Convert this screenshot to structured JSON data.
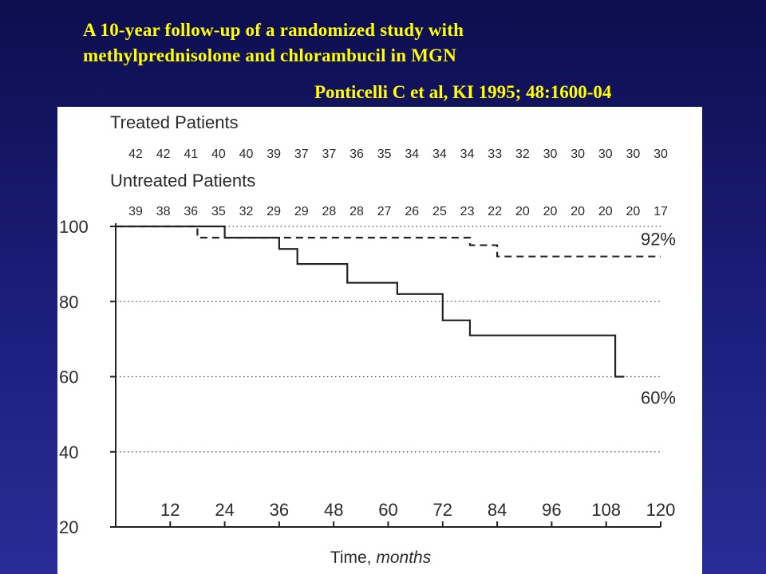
{
  "slide": {
    "title_line1": "A 10-year follow-up of a randomized study with",
    "title_line2": "methylprednisolone and chlorambucil in MGN",
    "citation": "Ponticelli C et al, KI 1995; 48:1600-04"
  },
  "chart_data": {
    "type": "line",
    "xlabel_prefix": "Time, ",
    "xlabel_unit": "months",
    "ylabel": "",
    "xlim": [
      0,
      120
    ],
    "ylim": [
      20,
      100
    ],
    "x_ticks": [
      12,
      24,
      36,
      48,
      60,
      72,
      84,
      96,
      108,
      120
    ],
    "y_ticks": [
      20,
      40,
      60,
      80,
      100
    ],
    "grid_y": [
      60,
      80
    ],
    "risk_table": {
      "treated_label": "Treated Patients",
      "treated_counts": [
        "42",
        "42",
        "41",
        "40",
        "40",
        "39",
        "37",
        "37",
        "36",
        "35",
        "34",
        "34",
        "34",
        "33",
        "32",
        "30",
        "30",
        "30",
        "30",
        "30"
      ],
      "untreated_label": "Untreated Patients",
      "untreated_counts": [
        "39",
        "38",
        "36",
        "35",
        "32",
        "29",
        "29",
        "28",
        "28",
        "27",
        "26",
        "25",
        "23",
        "22",
        "20",
        "20",
        "20",
        "20",
        "20",
        "17"
      ]
    },
    "series": [
      {
        "line_style": "dashed",
        "end_label": "92%",
        "points": [
          [
            0,
            100
          ],
          [
            18,
            100
          ],
          [
            18,
            97
          ],
          [
            42,
            97
          ],
          [
            42,
            97
          ],
          [
            78,
            97
          ],
          [
            78,
            95
          ],
          [
            84,
            95
          ],
          [
            84,
            92
          ],
          [
            120,
            92
          ]
        ]
      },
      {
        "line_style": "solid",
        "end_label": "60%",
        "points": [
          [
            0,
            100
          ],
          [
            24,
            100
          ],
          [
            24,
            97
          ],
          [
            36,
            97
          ],
          [
            36,
            94
          ],
          [
            40,
            94
          ],
          [
            40,
            90
          ],
          [
            51,
            90
          ],
          [
            51,
            85
          ],
          [
            62,
            85
          ],
          [
            62,
            82
          ],
          [
            72,
            82
          ],
          [
            72,
            75
          ],
          [
            78,
            75
          ],
          [
            78,
            71
          ],
          [
            110,
            71
          ],
          [
            110,
            60
          ],
          [
            112,
            60
          ]
        ]
      }
    ],
    "reference_lines": [
      {
        "line_style": "dotted",
        "points": [
          [
            24,
            100
          ],
          [
            120,
            100
          ]
        ]
      },
      {
        "line_style": "dotted",
        "points": [
          [
            0,
            40
          ],
          [
            120,
            40
          ]
        ]
      }
    ]
  }
}
